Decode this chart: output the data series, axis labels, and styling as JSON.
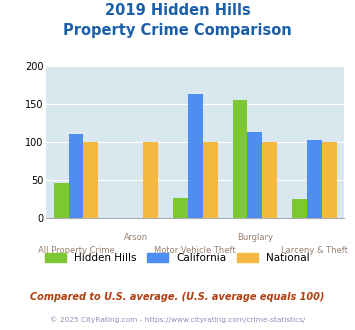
{
  "title_line1": "2019 Hidden Hills",
  "title_line2": "Property Crime Comparison",
  "categories": [
    "All Property Crime",
    "Arson",
    "Motor Vehicle Theft",
    "Burglary",
    "Larceny & Theft"
  ],
  "hidden_hills": [
    46,
    0,
    26,
    155,
    25
  ],
  "california": [
    110,
    0,
    163,
    113,
    103
  ],
  "national": [
    100,
    100,
    100,
    100,
    100
  ],
  "color_hh": "#7dc832",
  "color_ca": "#4d8ef0",
  "color_nat": "#f5b942",
  "ylim": [
    0,
    200
  ],
  "yticks": [
    0,
    50,
    100,
    150,
    200
  ],
  "bar_width": 0.25,
  "bg_color": "#d9e8ee",
  "legend_labels": [
    "Hidden Hills",
    "California",
    "National"
  ],
  "footer1": "Compared to U.S. average. (U.S. average equals 100)",
  "footer2": "© 2025 CityRating.com - https://www.cityrating.com/crime-statistics/",
  "title_color": "#1a5fa8",
  "xlabel_color_odd": "#9a8070",
  "xlabel_color_even": "#9a8070",
  "footer1_color": "#b04010",
  "footer2_color": "#9090b8",
  "grid_color": "#ffffff",
  "spine_color": "#aaaaaa"
}
